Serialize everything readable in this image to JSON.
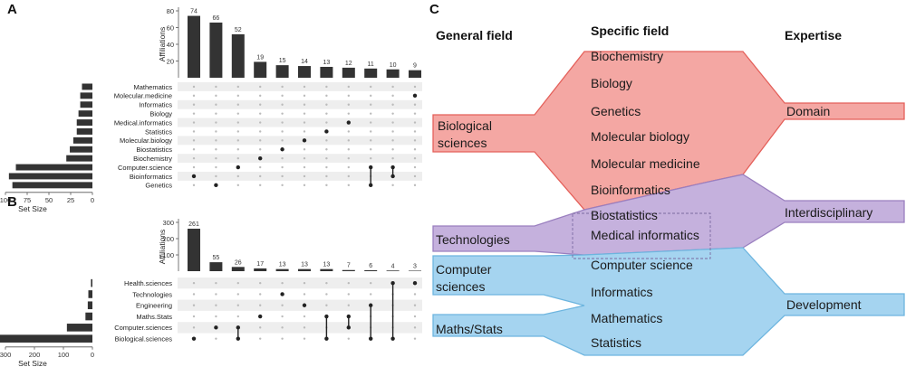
{
  "panel_labels": {
    "a": "A",
    "b": "B",
    "c": "C"
  },
  "colors": {
    "bar": "#333333",
    "dot_on": "#222222",
    "dot_off": "#bbbbbb",
    "stripe": "#eeeeee",
    "red_fill": "#f4a7a3",
    "red_stroke": "#e4605a",
    "purple_fill": "#c5b1dd",
    "purple_stroke": "#9a7fbf",
    "blue_fill": "#a5d4f0",
    "blue_stroke": "#6db5df"
  },
  "chart_data": [
    {
      "type": "bar",
      "panel": "A",
      "ylabel": "Affiliations",
      "set_size_label": "Set Size",
      "ylim": [
        0,
        80
      ],
      "yticks": [
        20,
        40,
        60,
        80
      ],
      "set_size_ticks": [
        100,
        75,
        50,
        25,
        0
      ],
      "intersection_sizes": [
        74,
        66,
        52,
        19,
        15,
        14,
        13,
        12,
        11,
        10,
        9
      ],
      "sets": [
        "Mathematics",
        "Molecular.medicine",
        "Informatics",
        "Biology",
        "Medical.informatics",
        "Statistics",
        "Molecular.biology",
        "Biostatistics",
        "Biochemistry",
        "Computer.science",
        "Bioinformatics",
        "Genetics"
      ],
      "set_sizes": [
        12,
        14,
        14,
        16,
        18,
        18,
        22,
        26,
        30,
        88,
        96,
        92
      ],
      "memberships": [
        [
          10
        ],
        [
          11
        ],
        [
          9
        ],
        [
          8
        ],
        [
          7
        ],
        [
          6
        ],
        [
          5
        ],
        [
          4
        ],
        [
          9,
          11
        ],
        [
          9,
          10
        ],
        [
          1
        ]
      ]
    },
    {
      "type": "bar",
      "panel": "B",
      "ylabel": "Affiliations",
      "set_size_label": "Set Size",
      "ylim": [
        0,
        300
      ],
      "yticks": [
        100,
        200,
        300
      ],
      "set_size_ticks": [
        300,
        200,
        100,
        0
      ],
      "intersection_sizes": [
        261,
        55,
        26,
        17,
        13,
        13,
        13,
        7,
        6,
        4,
        3
      ],
      "sets": [
        "Health.sciences",
        "Technologies",
        "Engineering",
        "Maths.Stats",
        "Computer.sciences",
        "Biological.sciences"
      ],
      "set_sizes": [
        5,
        14,
        16,
        24,
        88,
        320
      ],
      "memberships": [
        [
          5
        ],
        [
          4
        ],
        [
          4,
          5
        ],
        [
          3
        ],
        [
          1
        ],
        [
          2
        ],
        [
          3,
          5
        ],
        [
          3,
          4
        ],
        [
          2,
          5
        ],
        [
          0,
          5
        ],
        [
          0
        ]
      ]
    }
  ],
  "panel_c": {
    "headers": {
      "general": "General field",
      "specific": "Specific field",
      "expertise": "Expertise"
    },
    "general_fields": {
      "bio": [
        "Biological",
        "sciences"
      ],
      "tech": [
        "Technologies"
      ],
      "comp": [
        "Computer",
        "sciences"
      ],
      "maths": [
        "Maths/Stats"
      ]
    },
    "specific_fields": [
      "Biochemistry",
      "Biology",
      "Genetics",
      "Molecular biology",
      "Molecular medicine",
      "Bioinformatics",
      "Biostatistics",
      "Medical informatics",
      "Computer science",
      "Informatics",
      "Mathematics",
      "Statistics"
    ],
    "expertise": {
      "domain": "Domain",
      "inter": "Interdisciplinary",
      "dev": "Development"
    }
  }
}
